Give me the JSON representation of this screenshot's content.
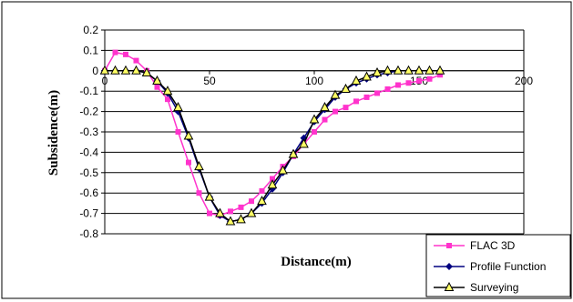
{
  "chart_data": {
    "type": "line",
    "xlabel": "Distance(m)",
    "ylabel": "Subsidence(m)",
    "xlim": [
      0,
      200
    ],
    "ylim": [
      -0.8,
      0.2
    ],
    "xticks": [
      "0",
      "50",
      "100",
      "150",
      "200"
    ],
    "yticks": [
      "0.2",
      "0.1",
      "0",
      "-0.1",
      "-0.2",
      "-0.3",
      "-0.4",
      "-0.5",
      "-0.6",
      "-0.7",
      "-0.8"
    ],
    "grid": "horizontal",
    "legend_position": "bottom-right",
    "series": [
      {
        "name": "FLAC 3D",
        "color": "#ff33cc",
        "marker": "square",
        "x": [
          0,
          5,
          10,
          15,
          20,
          25,
          30,
          35,
          40,
          45,
          50,
          55,
          60,
          65,
          70,
          75,
          80,
          85,
          90,
          95,
          100,
          105,
          110,
          115,
          120,
          125,
          130,
          135,
          140,
          145,
          150,
          155,
          160
        ],
        "y": [
          0,
          0.09,
          0.08,
          0.05,
          0,
          -0.08,
          -0.14,
          -0.3,
          -0.45,
          -0.6,
          -0.7,
          -0.71,
          -0.69,
          -0.67,
          -0.64,
          -0.59,
          -0.53,
          -0.47,
          -0.42,
          -0.36,
          -0.3,
          -0.24,
          -0.2,
          -0.18,
          -0.15,
          -0.13,
          -0.11,
          -0.09,
          -0.07,
          -0.06,
          -0.05,
          -0.04,
          -0.02
        ]
      },
      {
        "name": "Profile Function",
        "color": "#000080",
        "marker": "diamond",
        "x": [
          0,
          5,
          10,
          15,
          20,
          25,
          30,
          35,
          40,
          45,
          50,
          55,
          60,
          65,
          70,
          75,
          80,
          85,
          90,
          95,
          100,
          105,
          110,
          115,
          120,
          125,
          130,
          135,
          140,
          145,
          150,
          155,
          160
        ],
        "y": [
          0,
          0,
          0,
          0,
          -0.01,
          -0.05,
          -0.11,
          -0.2,
          -0.33,
          -0.48,
          -0.62,
          -0.71,
          -0.74,
          -0.73,
          -0.7,
          -0.65,
          -0.58,
          -0.5,
          -0.41,
          -0.33,
          -0.25,
          -0.19,
          -0.13,
          -0.09,
          -0.06,
          -0.04,
          -0.02,
          -0.01,
          0,
          0,
          0,
          0,
          0
        ]
      },
      {
        "name": "Surveying",
        "color": "#000000",
        "fill": "#ffff66",
        "marker": "triangle",
        "x": [
          0,
          5,
          10,
          15,
          20,
          25,
          30,
          35,
          40,
          45,
          50,
          55,
          60,
          65,
          70,
          75,
          80,
          85,
          90,
          95,
          100,
          105,
          110,
          115,
          120,
          125,
          130,
          135,
          140,
          145,
          150,
          155,
          160
        ],
        "y": [
          0,
          0,
          0,
          0,
          -0.01,
          -0.05,
          -0.1,
          -0.18,
          -0.32,
          -0.47,
          -0.62,
          -0.7,
          -0.74,
          -0.73,
          -0.7,
          -0.64,
          -0.56,
          -0.49,
          -0.41,
          -0.36,
          -0.24,
          -0.18,
          -0.12,
          -0.09,
          -0.05,
          -0.03,
          -0.01,
          0,
          0,
          0,
          0,
          0,
          0
        ]
      }
    ]
  }
}
